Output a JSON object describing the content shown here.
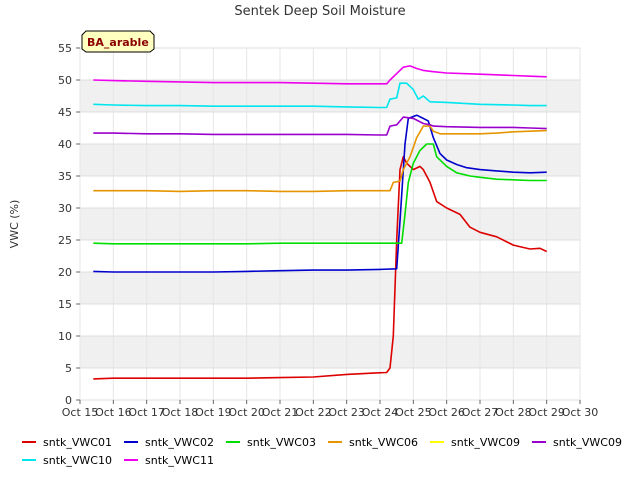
{
  "chart_data": {
    "type": "line",
    "title": "Sentek Deep Soil Moisture",
    "ylabel": "VWC (%)",
    "xlabel": "",
    "badge": "BA_arable",
    "ylim": [
      0,
      55
    ],
    "yticks": [
      0,
      5,
      10,
      15,
      20,
      25,
      30,
      35,
      40,
      45,
      50,
      55
    ],
    "xlim": [
      15,
      30
    ],
    "xticks": [
      {
        "x": 15,
        "label": "Oct 15"
      },
      {
        "x": 16,
        "label": "Oct 16"
      },
      {
        "x": 17,
        "label": "Oct 17"
      },
      {
        "x": 18,
        "label": "Oct 18"
      },
      {
        "x": 19,
        "label": "Oct 19"
      },
      {
        "x": 20,
        "label": "Oct 20"
      },
      {
        "x": 21,
        "label": "Oct 21"
      },
      {
        "x": 22,
        "label": "Oct 22"
      },
      {
        "x": 23,
        "label": "Oct 23"
      },
      {
        "x": 24,
        "label": "Oct 24"
      },
      {
        "x": 25,
        "label": "Oct 25"
      },
      {
        "x": 26,
        "label": "Oct 26"
      },
      {
        "x": 27,
        "label": "Oct 27"
      },
      {
        "x": 28,
        "label": "Oct 28"
      },
      {
        "x": 29,
        "label": "Oct 29"
      },
      {
        "x": 30,
        "label": "Oct 30"
      }
    ],
    "grid": true,
    "legend_position": "bottom",
    "series": [
      {
        "name": "sntk_VWC01",
        "color": "#dd0000",
        "points": [
          [
            15.4,
            3.3
          ],
          [
            16,
            3.4
          ],
          [
            17,
            3.4
          ],
          [
            18,
            3.4
          ],
          [
            19,
            3.4
          ],
          [
            20,
            3.4
          ],
          [
            21,
            3.5
          ],
          [
            22,
            3.6
          ],
          [
            23,
            4.0
          ],
          [
            23.8,
            4.2
          ],
          [
            24.2,
            4.3
          ],
          [
            24.3,
            5.0
          ],
          [
            24.4,
            10
          ],
          [
            24.5,
            25
          ],
          [
            24.6,
            36
          ],
          [
            24.7,
            38
          ],
          [
            24.8,
            37
          ],
          [
            25,
            36
          ],
          [
            25.2,
            36.5
          ],
          [
            25.3,
            36
          ],
          [
            25.5,
            34
          ],
          [
            25.7,
            31
          ],
          [
            26,
            30
          ],
          [
            26.4,
            29
          ],
          [
            26.7,
            27
          ],
          [
            27,
            26.2
          ],
          [
            27.5,
            25.5
          ],
          [
            28,
            24.2
          ],
          [
            28.5,
            23.6
          ],
          [
            28.8,
            23.7
          ],
          [
            29,
            23.2
          ]
        ]
      },
      {
        "name": "sntk_VWC02",
        "color": "#0000cc",
        "points": [
          [
            15.4,
            20.1
          ],
          [
            16,
            20.0
          ],
          [
            17,
            20.0
          ],
          [
            18,
            20.0
          ],
          [
            19,
            20.0
          ],
          [
            20,
            20.1
          ],
          [
            21,
            20.2
          ],
          [
            22,
            20.3
          ],
          [
            23,
            20.3
          ],
          [
            24,
            20.4
          ],
          [
            24.5,
            20.5
          ],
          [
            24.6,
            28
          ],
          [
            24.75,
            40
          ],
          [
            24.85,
            44
          ],
          [
            25.1,
            44.5
          ],
          [
            25.3,
            44
          ],
          [
            25.45,
            43.6
          ],
          [
            25.6,
            41
          ],
          [
            25.8,
            38.5
          ],
          [
            26,
            37.5
          ],
          [
            26.3,
            36.8
          ],
          [
            26.6,
            36.3
          ],
          [
            27,
            36.0
          ],
          [
            27.5,
            35.8
          ],
          [
            28,
            35.6
          ],
          [
            28.5,
            35.5
          ],
          [
            29,
            35.6
          ]
        ]
      },
      {
        "name": "sntk_VWC03",
        "color": "#00dd00",
        "points": [
          [
            15.4,
            24.5
          ],
          [
            16,
            24.4
          ],
          [
            17,
            24.4
          ],
          [
            18,
            24.4
          ],
          [
            19,
            24.4
          ],
          [
            20,
            24.4
          ],
          [
            21,
            24.5
          ],
          [
            22,
            24.5
          ],
          [
            23,
            24.5
          ],
          [
            24,
            24.5
          ],
          [
            24.65,
            24.5
          ],
          [
            24.75,
            29
          ],
          [
            24.85,
            34
          ],
          [
            25,
            37
          ],
          [
            25.2,
            39
          ],
          [
            25.4,
            40
          ],
          [
            25.6,
            40
          ],
          [
            25.7,
            38
          ],
          [
            26,
            36.5
          ],
          [
            26.3,
            35.5
          ],
          [
            26.7,
            35.0
          ],
          [
            27,
            34.8
          ],
          [
            27.5,
            34.5
          ],
          [
            28,
            34.4
          ],
          [
            28.5,
            34.3
          ],
          [
            29,
            34.3
          ]
        ]
      },
      {
        "name": "sntk_VWC06",
        "color": "#e69500",
        "points": [
          [
            15.4,
            32.7
          ],
          [
            16,
            32.7
          ],
          [
            17,
            32.7
          ],
          [
            18,
            32.6
          ],
          [
            19,
            32.7
          ],
          [
            20,
            32.7
          ],
          [
            21,
            32.6
          ],
          [
            22,
            32.6
          ],
          [
            23,
            32.7
          ],
          [
            24,
            32.7
          ],
          [
            24.3,
            32.7
          ],
          [
            24.4,
            34
          ],
          [
            24.6,
            34.2
          ],
          [
            24.7,
            36
          ],
          [
            24.9,
            38
          ],
          [
            25.1,
            41
          ],
          [
            25.3,
            42.8
          ],
          [
            25.5,
            42.8
          ],
          [
            25.6,
            42
          ],
          [
            25.8,
            41.6
          ],
          [
            26.5,
            41.6
          ],
          [
            27,
            41.6
          ],
          [
            27.5,
            41.7
          ],
          [
            28,
            41.9
          ],
          [
            28.5,
            42.0
          ],
          [
            29,
            42.1
          ]
        ]
      },
      {
        "name": "sntk_VWC09",
        "color": "#ffff00",
        "points": []
      },
      {
        "name": "sntk_VWC09",
        "color": "#9900cc",
        "points": [
          [
            15.4,
            41.7
          ],
          [
            16,
            41.7
          ],
          [
            17,
            41.6
          ],
          [
            18,
            41.6
          ],
          [
            19,
            41.5
          ],
          [
            20,
            41.5
          ],
          [
            21,
            41.5
          ],
          [
            22,
            41.5
          ],
          [
            23,
            41.5
          ],
          [
            24,
            41.4
          ],
          [
            24.2,
            41.4
          ],
          [
            24.3,
            42.8
          ],
          [
            24.5,
            43.0
          ],
          [
            24.7,
            44.2
          ],
          [
            25,
            44.0
          ],
          [
            25.3,
            43.2
          ],
          [
            25.5,
            43.0
          ],
          [
            25.6,
            42.8
          ],
          [
            26,
            42.7
          ],
          [
            27,
            42.6
          ],
          [
            28,
            42.6
          ],
          [
            28.5,
            42.5
          ],
          [
            29,
            42.4
          ]
        ]
      },
      {
        "name": "sntk_VWC10",
        "color": "#00e5ee",
        "points": [
          [
            15.4,
            46.2
          ],
          [
            16,
            46.1
          ],
          [
            17,
            46.0
          ],
          [
            18,
            46.0
          ],
          [
            19,
            45.9
          ],
          [
            20,
            45.9
          ],
          [
            21,
            45.9
          ],
          [
            22,
            45.9
          ],
          [
            23,
            45.8
          ],
          [
            24,
            45.7
          ],
          [
            24.2,
            45.7
          ],
          [
            24.3,
            47.0
          ],
          [
            24.5,
            47.2
          ],
          [
            24.6,
            49.5
          ],
          [
            24.8,
            49.5
          ],
          [
            25,
            48.5
          ],
          [
            25.15,
            47.0
          ],
          [
            25.3,
            47.5
          ],
          [
            25.5,
            46.6
          ],
          [
            26,
            46.5
          ],
          [
            27,
            46.2
          ],
          [
            28,
            46.1
          ],
          [
            28.5,
            46.0
          ],
          [
            29,
            46.0
          ]
        ]
      },
      {
        "name": "sntk_VWC11",
        "color": "#ee00ee",
        "points": [
          [
            15.4,
            50.0
          ],
          [
            16,
            49.9
          ],
          [
            17,
            49.8
          ],
          [
            18,
            49.7
          ],
          [
            19,
            49.6
          ],
          [
            20,
            49.6
          ],
          [
            21,
            49.6
          ],
          [
            22,
            49.5
          ],
          [
            23,
            49.4
          ],
          [
            24,
            49.4
          ],
          [
            24.2,
            49.4
          ],
          [
            24.3,
            50
          ],
          [
            24.5,
            51
          ],
          [
            24.7,
            52
          ],
          [
            24.9,
            52.2
          ],
          [
            25.1,
            51.8
          ],
          [
            25.3,
            51.5
          ],
          [
            25.6,
            51.3
          ],
          [
            26,
            51.1
          ],
          [
            27,
            50.9
          ],
          [
            28,
            50.7
          ],
          [
            28.5,
            50.6
          ],
          [
            29,
            50.5
          ]
        ]
      }
    ]
  }
}
